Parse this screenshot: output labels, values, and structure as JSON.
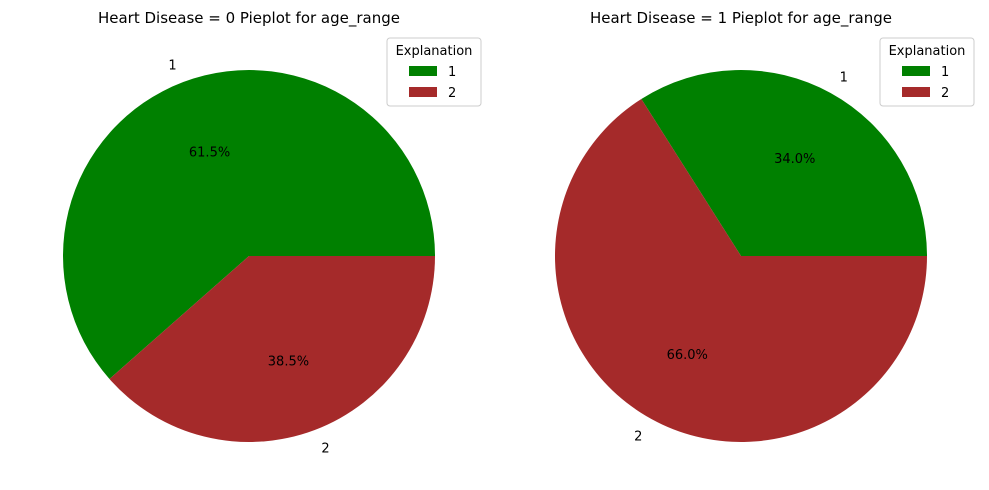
{
  "chart_data": [
    {
      "type": "pie",
      "title": "Heart Disease = 0 Pieplot for age_range",
      "categories": [
        "1",
        "2"
      ],
      "values": [
        61.5,
        38.5
      ],
      "percent_labels": [
        "61.5%",
        "38.5%"
      ],
      "colors": [
        "#008000",
        "#a52a2a"
      ],
      "legend": {
        "title": "Explanation",
        "entries": [
          "1",
          "2"
        ],
        "placement": "top-right"
      }
    },
    {
      "type": "pie",
      "title": "Heart Disease = 1 Pieplot for age_range",
      "categories": [
        "1",
        "2"
      ],
      "values": [
        34.0,
        66.0
      ],
      "percent_labels": [
        "34.0%",
        "66.0%"
      ],
      "colors": [
        "#008000",
        "#a52a2a"
      ],
      "legend": {
        "title": "Explanation",
        "entries": [
          "1",
          "2"
        ],
        "placement": "top-right"
      }
    }
  ]
}
